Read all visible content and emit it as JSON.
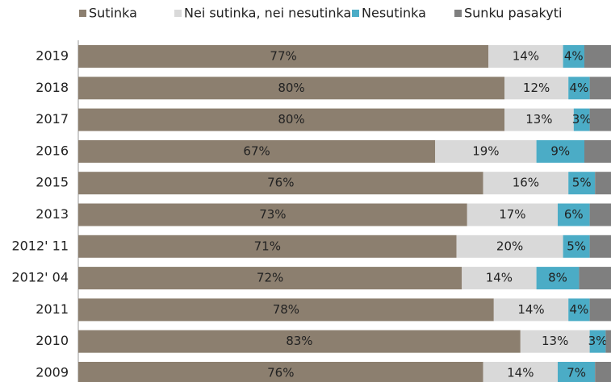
{
  "chart_data": {
    "type": "stacked-bar-horizontal",
    "categories": [
      "2019",
      "2018",
      "2017",
      "2016",
      "2015",
      "2013",
      "2012' 11",
      "2012' 04",
      "2011",
      "2010",
      "2009"
    ],
    "xlim": [
      0,
      100
    ],
    "legend": "top",
    "series": [
      {
        "name": "Sutinka",
        "color": "#8c7f6f",
        "values": [
          77,
          80,
          80,
          67,
          76,
          73,
          71,
          72,
          78,
          83,
          76
        ],
        "value_labels": [
          "77%",
          "80%",
          "80%",
          "67%",
          "76%",
          "73%",
          "71%",
          "72%",
          "78%",
          "83%",
          "76%"
        ]
      },
      {
        "name": "Nei sutinka, nei nesutinka",
        "color": "#d9d9d9",
        "values": [
          14,
          12,
          13,
          19,
          16,
          17,
          20,
          14,
          14,
          13,
          14
        ],
        "value_labels": [
          "14%",
          "12%",
          "13%",
          "19%",
          "16%",
          "17%",
          "20%",
          "14%",
          "14%",
          "13%",
          "14%"
        ]
      },
      {
        "name": "Nesutinka",
        "color": "#4bacc6",
        "values": [
          4,
          4,
          3,
          9,
          5,
          6,
          5,
          8,
          4,
          3,
          7
        ],
        "value_labels": [
          "4%",
          "4%",
          "3%",
          "9%",
          "5%",
          "6%",
          "5%",
          "8%",
          "4%",
          "3%",
          "7%"
        ]
      },
      {
        "name": "Sunku pasakyti",
        "color": "#7f7f7f",
        "values": [
          5,
          4,
          4,
          5,
          3,
          4,
          4,
          6,
          4,
          1,
          3
        ]
      }
    ]
  }
}
